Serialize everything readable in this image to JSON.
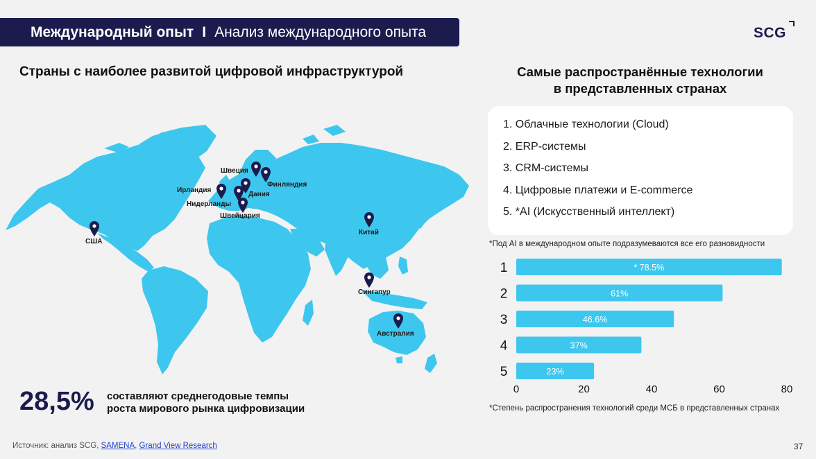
{
  "header": {
    "section": "Международный опыт",
    "separator": "I",
    "subtitle": "Анализ международного опыта"
  },
  "logo": {
    "text": "SCG"
  },
  "map": {
    "title": "Страны с наиболее развитой цифровой инфраструктурой",
    "fill_color": "#3ec7ee",
    "pin_color": "#1b1b4e",
    "countries": [
      "США",
      "Ирландия",
      "Швеция",
      "Финляндия",
      "Дания",
      "Нидерланды",
      "Швейцария",
      "Китай",
      "Сингапур",
      "Австралия"
    ]
  },
  "tech": {
    "title_line1": "Самые распространённые технологии",
    "title_line2": "в представленных странах",
    "items": [
      "1.  Облачные технологии (Cloud)",
      "2. ERP-системы",
      "3. CRM-системы",
      "4. Цифровые платежи и E-commerce",
      "5. *AI (Искусственный интеллект)"
    ],
    "note_top": "*Под AI в международном опыте подразумеваются все его разновидности",
    "note_bottom": "*Степень распространения технологий среди МСБ в представленных странах"
  },
  "chart_data": {
    "type": "bar",
    "orientation": "horizontal",
    "categories": [
      "1",
      "2",
      "3",
      "4",
      "5"
    ],
    "values": [
      78.5,
      61,
      46.6,
      37,
      23
    ],
    "value_labels": [
      "78.5%",
      "61%",
      "46.6%",
      "37%",
      "23%"
    ],
    "annotation": "*",
    "xlim": [
      0,
      80
    ],
    "xticks": [
      0,
      20,
      40,
      60,
      80
    ],
    "bar_color": "#3ec7ee",
    "grid": false
  },
  "stat": {
    "value": "28,5%",
    "line1": "составляют среднегодовые темпы",
    "line2": "роста мирового рынка цифровизации"
  },
  "footer": {
    "source_prefix": "Источник: анализ SCG,",
    "source_link1": "SAMENA",
    "source_comma": ",",
    "source_link2": "Grand View Research",
    "page_number": "37"
  }
}
